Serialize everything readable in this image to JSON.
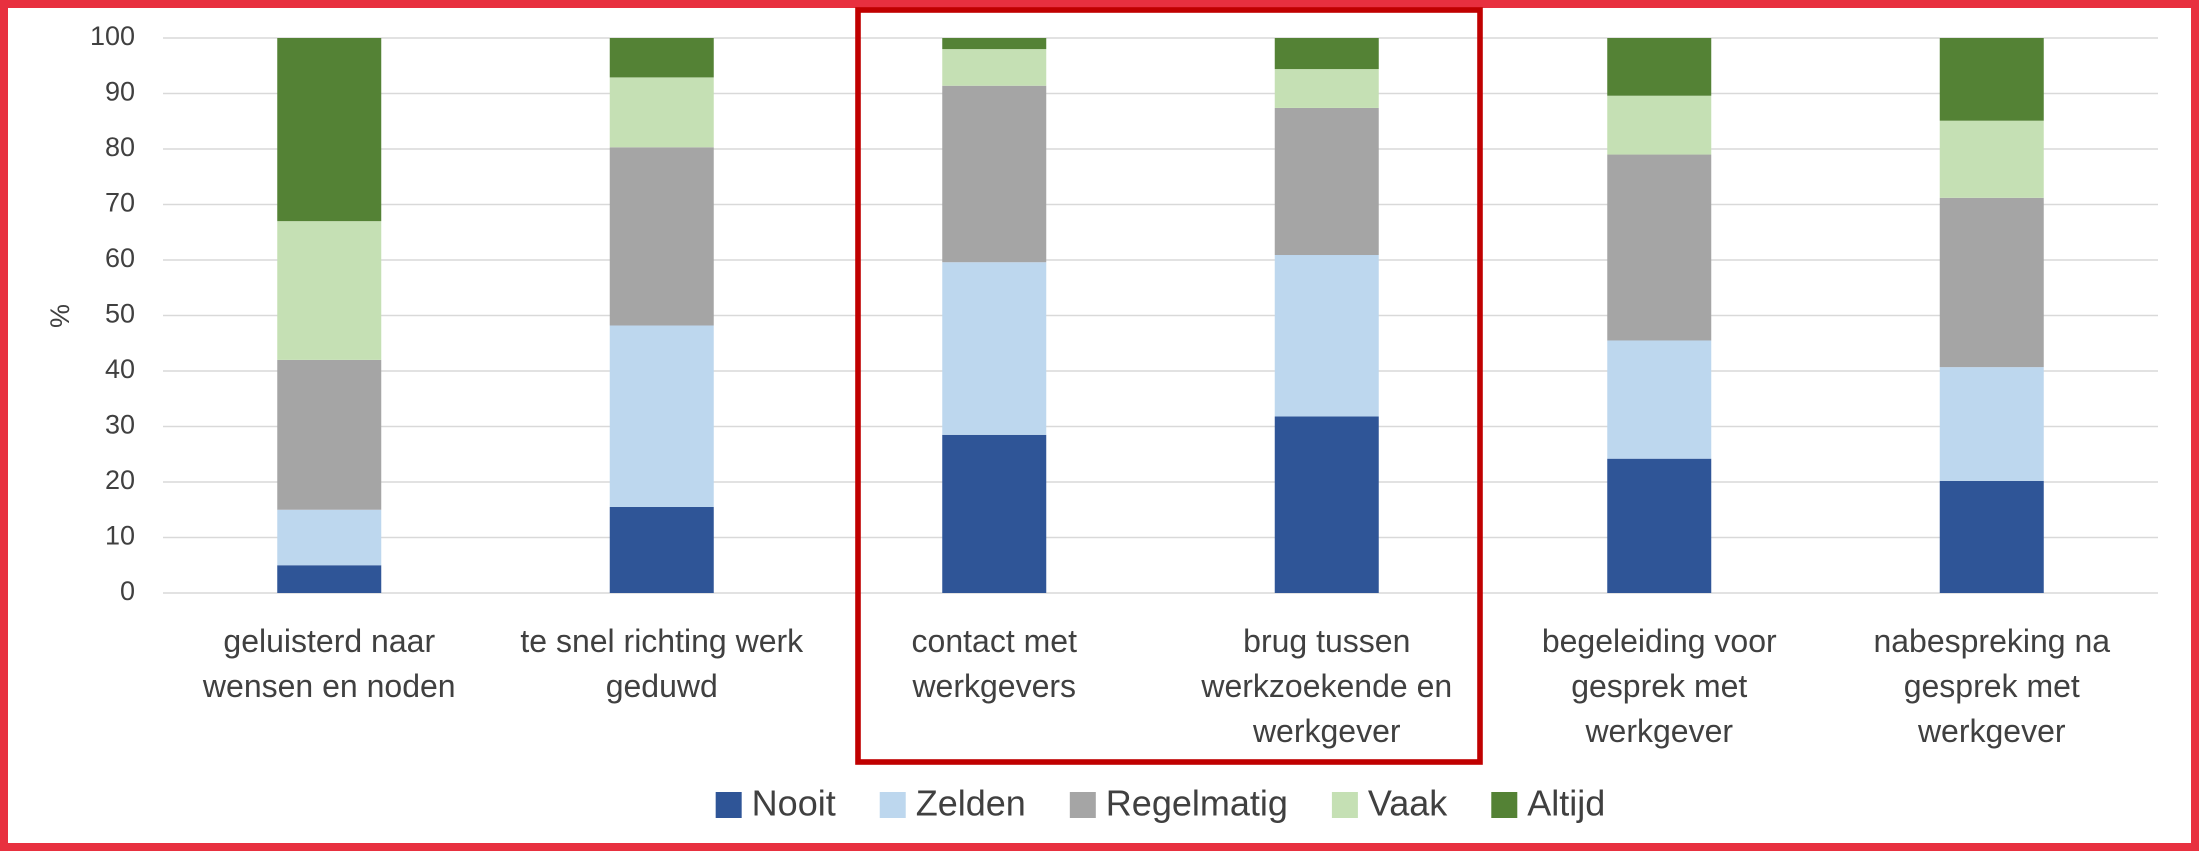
{
  "chart_data": {
    "type": "stacked_bar",
    "y_label": "%",
    "categories": [
      "geluisterd naar\nwensen en noden",
      "te snel richting werk\ngeduwd",
      "contact met\nwerkgevers",
      "brug tussen\nwerkzoekende en\nwerkgever",
      "begeleiding voor\ngesprek met\nwerkgever",
      "nabespreking na\ngesprek met\nwerkgever"
    ],
    "series": [
      {
        "name": "Nooit",
        "color": "#2f5597",
        "values": [
          5,
          15.5,
          28.5,
          31.8,
          24.2,
          20.2
        ]
      },
      {
        "name": "Zelden",
        "color": "#bdd7ee",
        "values": [
          10,
          32.7,
          31.1,
          29.1,
          21.3,
          20.5
        ]
      },
      {
        "name": "Regelmatig",
        "color": "#a5a5a5",
        "values": [
          27,
          32.1,
          31.8,
          26.5,
          33.5,
          30.5
        ]
      },
      {
        "name": "Vaak",
        "color": "#c5e0b4",
        "values": [
          25,
          12.6,
          6.6,
          7.0,
          10.6,
          13.9
        ]
      },
      {
        "name": "Altijd",
        "color": "#548235",
        "values": [
          33,
          7.1,
          2.0,
          5.6,
          10.4,
          14.9
        ]
      }
    ],
    "ylim": [
      0,
      100
    ],
    "yticks": [
      0,
      10,
      20,
      30,
      40,
      50,
      60,
      70,
      80,
      90,
      100
    ],
    "grid": true,
    "legend": "bottom"
  }
}
